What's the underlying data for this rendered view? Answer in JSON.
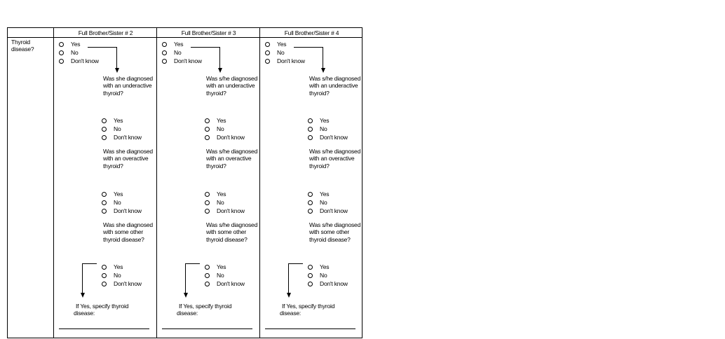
{
  "table": {
    "row_label": "Thyroid disease?",
    "columns": [
      {
        "header": "Full Brother/Sister # 2",
        "main_options": [
          "Yes",
          "No",
          "Don't know"
        ],
        "q1": "Was she diagnosed with an underactive thyroid?",
        "q1_options": [
          "Yes",
          "No",
          "Don't know"
        ],
        "q2": "Was she diagnosed with an overactive thyroid?",
        "q2_options": [
          "Yes",
          "No",
          "Don't know"
        ],
        "q3": "Was she diagnosed with some other thyroid disease?",
        "q3_options": [
          "Yes",
          "No",
          "Don't know"
        ],
        "specify": "If Yes, specify thyroid disease:"
      },
      {
        "header": "Full Brother/Sister # 3",
        "main_options": [
          "Yes",
          "No",
          "Don't know"
        ],
        "q1": "Was s/he diagnosed with an underactive thyroid?",
        "q1_options": [
          "Yes",
          "No",
          "Don't know"
        ],
        "q2": "Was s/he diagnosed with an overactive thyroid?",
        "q2_options": [
          "Yes",
          "No",
          "Don't know"
        ],
        "q3": "Was s/he diagnosed with some other thyroid disease?",
        "q3_options": [
          "Yes",
          "No",
          "Don't know"
        ],
        "specify": "If Yes, specify thyroid disease:"
      },
      {
        "header": "Full Brother/Sister # 4",
        "main_options": [
          "Yes",
          "No",
          "Don't know"
        ],
        "q1": "Was s/he diagnosed with an underactive thyroid?",
        "q1_options": [
          "Yes",
          "No",
          "Don't know"
        ],
        "q2": "Was s/he diagnosed with an overactive thyroid?",
        "q2_options": [
          "Yes",
          "No",
          "Don't know"
        ],
        "q3": "Was s/he diagnosed with some other thyroid disease?",
        "q3_options": [
          "Yes",
          "No",
          "Don't know"
        ],
        "specify": "If Yes, specify thyroid disease:"
      }
    ]
  }
}
